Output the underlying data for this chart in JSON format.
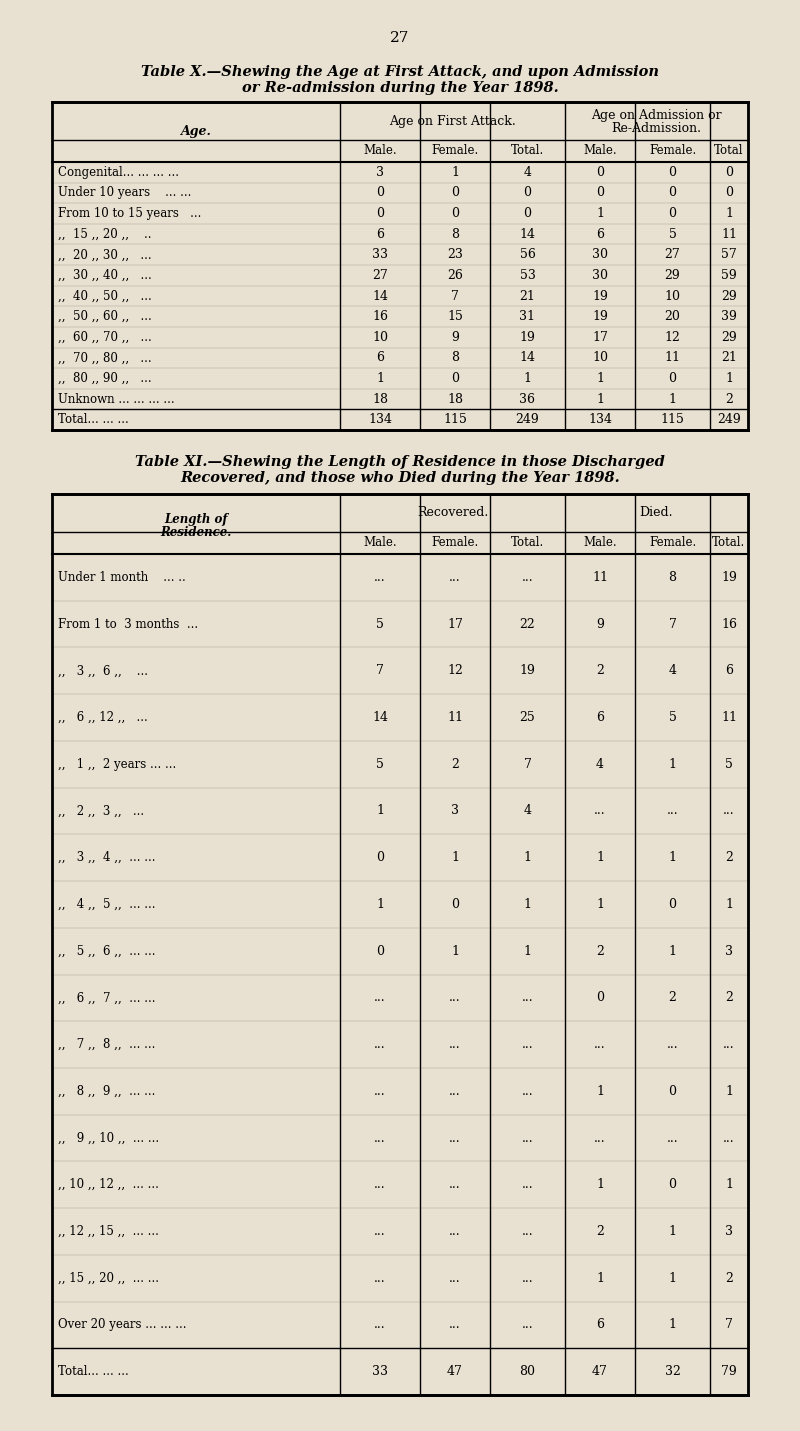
{
  "bg_color": "#e8e0d0",
  "page_number": "27",
  "table_x_title_line1": "Table X.—Shewing the Age at First Attack, and upon Admission",
  "table_x_title_line2": "or Re-admission during the Year 1898.",
  "table_x_col_headers": [
    "Age on First Attack.",
    "Age on Admission or\nRe-Admission."
  ],
  "table_x_sub_headers": [
    "Male.",
    "Female.",
    "Total.",
    "Male.",
    "Female.",
    "Total"
  ],
  "table_x_row_labels": [
    "Congenital... ... ... ...",
    "Under 10 years    ... ...",
    "From 10 to 15 years   ...",
    ",,  15 ,, 20 ,,    ..",
    ",,  20 ,, 30 ,,   ...",
    ",,  30 ,, 40 ,,   ...",
    ",,  40 ,, 50 ,,   ...",
    ",,  50 ,, 60 ,,   ...",
    ",,  60 ,, 70 ,,   ...",
    ",,  70 ,, 80 ,,   ...",
    ",,  80 ,, 90 ,,   ...",
    "Unknown ... ... ... ...",
    "Total... ... ..."
  ],
  "table_x_data": [
    [
      3,
      1,
      4,
      0,
      0,
      0
    ],
    [
      0,
      0,
      0,
      0,
      0,
      0
    ],
    [
      0,
      0,
      0,
      1,
      0,
      1
    ],
    [
      6,
      8,
      14,
      6,
      5,
      11
    ],
    [
      33,
      23,
      56,
      30,
      27,
      57
    ],
    [
      27,
      26,
      53,
      30,
      29,
      59
    ],
    [
      14,
      7,
      21,
      19,
      10,
      29
    ],
    [
      16,
      15,
      31,
      19,
      20,
      39
    ],
    [
      10,
      9,
      19,
      17,
      12,
      29
    ],
    [
      6,
      8,
      14,
      10,
      11,
      21
    ],
    [
      1,
      0,
      1,
      1,
      0,
      1
    ],
    [
      18,
      18,
      36,
      1,
      1,
      2
    ],
    [
      134,
      115,
      249,
      134,
      115,
      249
    ]
  ],
  "table_xi_title_line1": "Table XI.—Shewing the Length of Residence in those Discharged",
  "table_xi_title_line2": "Recovered, and those who Died during the Year 1898.",
  "table_xi_col_headers": [
    "Recovered.",
    "Died."
  ],
  "table_xi_sub_headers": [
    "Male.",
    "Female.",
    "Total.",
    "Male.",
    "Female.",
    "Total."
  ],
  "table_xi_row_labels": [
    "Under 1 month    ... ..",
    "From 1 to  3 months  ...",
    ",,   3 ,,  6 ,,    ...",
    ",,   6 ,, 12 ,,   ...",
    ",,   1 ,,  2 years ... ...",
    ",,   2 ,,  3 ,,   ...",
    ",,   3 ,,  4 ,,  ... ...",
    ",,   4 ,,  5 ,,  ... ...",
    ",,   5 ,,  6 ,,  ... ...",
    ",,   6 ,,  7 ,,  ... ...",
    ",,   7 ,,  8 ,,  ... ...",
    ",,   8 ,,  9 ,,  ... ...",
    ",,   9 ,, 10 ,,  ... ...",
    ",, 10 ,, 12 ,,  ... ...",
    ",, 12 ,, 15 ,,  ... ...",
    ",, 15 ,, 20 ,,  ... ...",
    "Over 20 years ... ... ...",
    "Total... ... ..."
  ],
  "table_xi_data": [
    [
      "...",
      "...",
      "...",
      11,
      8,
      19
    ],
    [
      5,
      17,
      22,
      9,
      7,
      16
    ],
    [
      7,
      12,
      19,
      2,
      4,
      6
    ],
    [
      14,
      11,
      25,
      6,
      5,
      11
    ],
    [
      5,
      2,
      7,
      4,
      1,
      5
    ],
    [
      1,
      3,
      4,
      "...",
      "...",
      "..."
    ],
    [
      0,
      1,
      1,
      1,
      1,
      2
    ],
    [
      1,
      0,
      1,
      1,
      0,
      1
    ],
    [
      0,
      1,
      1,
      2,
      1,
      3
    ],
    [
      "...",
      "...",
      "...",
      0,
      2,
      2
    ],
    [
      "...",
      "...",
      "...",
      "...",
      "...",
      "..."
    ],
    [
      "...",
      "...",
      "...",
      1,
      0,
      1
    ],
    [
      "...",
      "...",
      "...",
      "...",
      "...",
      "..."
    ],
    [
      "...",
      "...",
      "...",
      1,
      0,
      1
    ],
    [
      "...",
      "...",
      "...",
      2,
      1,
      3
    ],
    [
      "...",
      "...",
      "...",
      1,
      1,
      2
    ],
    [
      "...",
      "...",
      "...",
      6,
      1,
      7
    ],
    [
      33,
      47,
      80,
      47,
      32,
      79
    ]
  ]
}
